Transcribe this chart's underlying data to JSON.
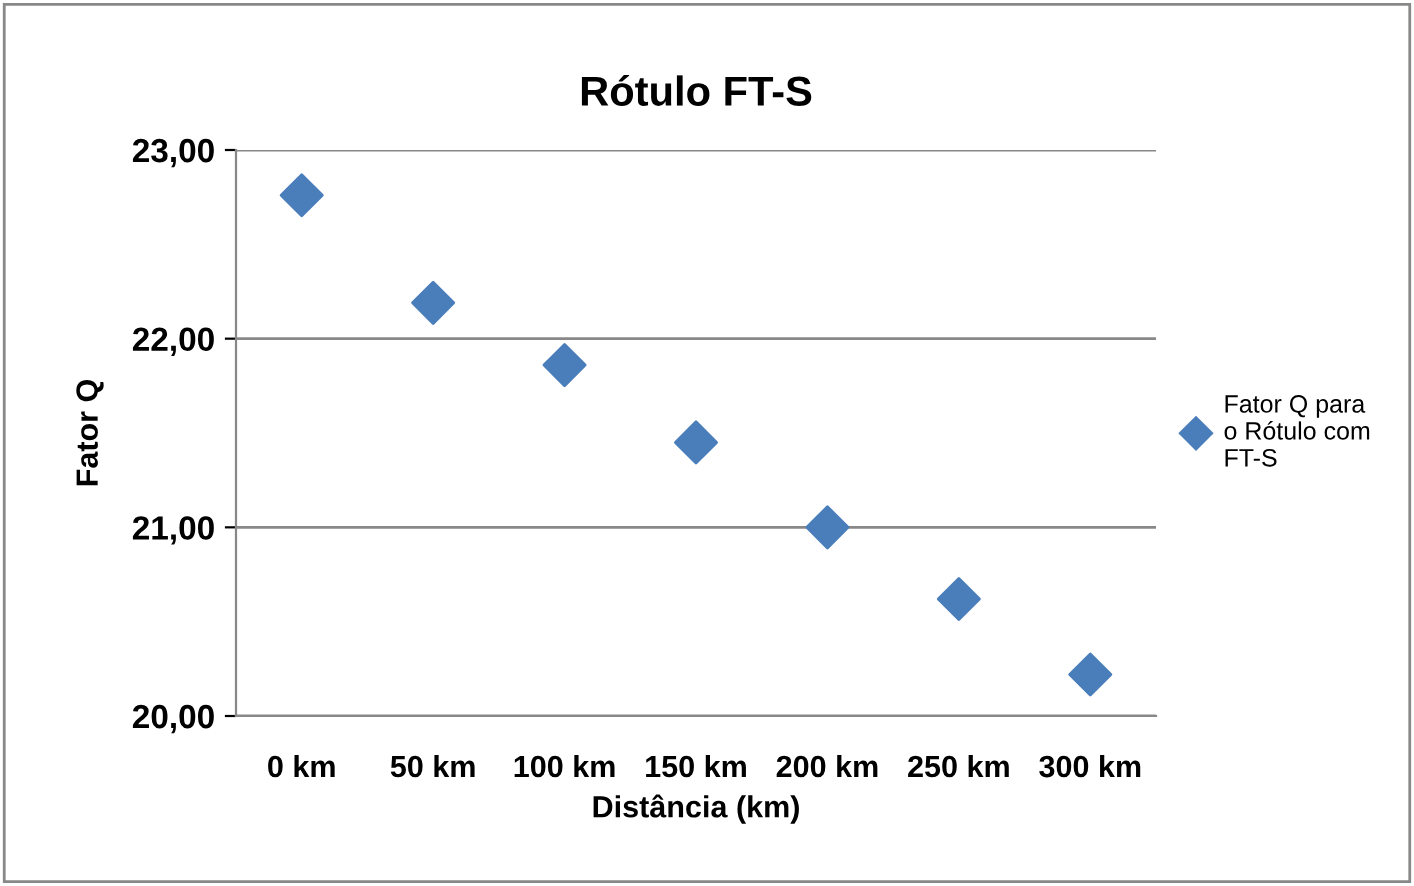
{
  "chart_data": {
    "type": "scatter",
    "title": "Rótulo FT-S",
    "xlabel": "Distância (km)",
    "ylabel": "Fator Q",
    "categories": [
      "0 km",
      "50 km",
      "100 km",
      "150 km",
      "200 km",
      "250 km",
      "300 km"
    ],
    "series": [
      {
        "name": "Fator Q para o Rótulo com FT-S",
        "color": "#4a7ebb",
        "values": [
          22.76,
          22.19,
          21.86,
          21.45,
          21.0,
          20.62,
          20.22
        ]
      }
    ],
    "ylim": [
      20,
      23
    ],
    "yticks": [
      {
        "value": 20,
        "label": "20,00"
      },
      {
        "value": 21,
        "label": "21,00"
      },
      {
        "value": 22,
        "label": "22,00"
      },
      {
        "value": 23,
        "label": "23,00"
      }
    ],
    "grid": "y",
    "legend": "right",
    "marker": "diamond"
  }
}
